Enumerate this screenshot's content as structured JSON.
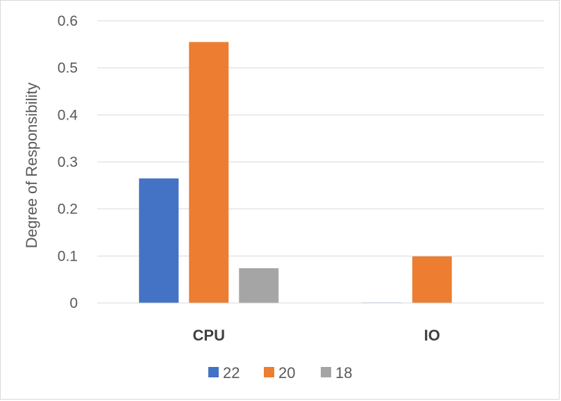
{
  "chart_data": {
    "type": "bar",
    "title": "",
    "xlabel": "",
    "ylabel": "Degree of Responsibility",
    "categories": [
      "CPU",
      "IO"
    ],
    "series": [
      {
        "name": "22",
        "color": "#4472C4",
        "values": [
          0.265,
          0.001
        ]
      },
      {
        "name": "20",
        "color": "#ED7D31",
        "values": [
          0.555,
          0.099
        ]
      },
      {
        "name": "18",
        "color": "#A5A5A5",
        "values": [
          0.074,
          0.0
        ]
      }
    ],
    "ylim": [
      0,
      0.6
    ],
    "yticks": [
      "0",
      "0.1",
      "0.2",
      "0.3",
      "0.4",
      "0.5",
      "0.6"
    ],
    "grid": true,
    "legend_position": "bottom"
  }
}
